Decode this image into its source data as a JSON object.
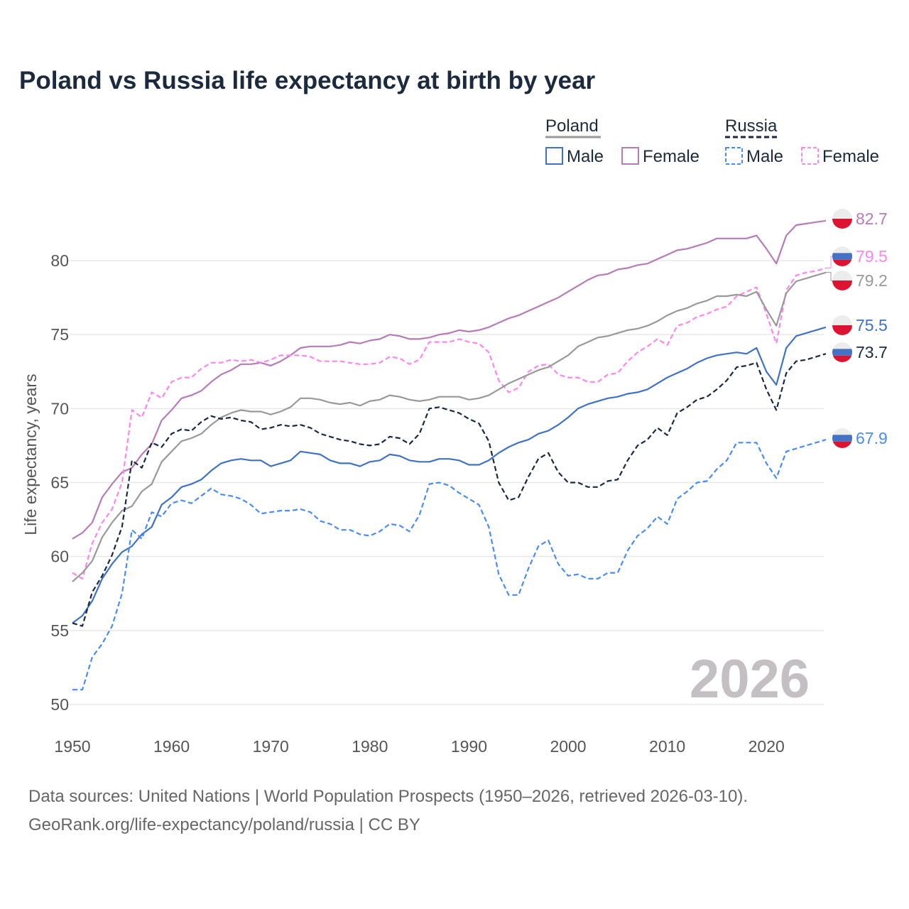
{
  "title": "Poland vs Russia life expectancy at birth by year",
  "footer": {
    "line1": "Data sources: United Nations | World Population Prospects (1950–2026, retrieved 2026-03-10).",
    "line2": "GeoRank.org/life-expectancy/poland/russia | CC BY"
  },
  "chart_data": {
    "type": "line",
    "title": "Poland vs Russia life expectancy at birth by year",
    "xlabel": "",
    "ylabel": "Life expectancy, years",
    "xlim": [
      1950,
      2026
    ],
    "ylim": [
      50,
      83
    ],
    "x_ticks": [
      "1950",
      "1960",
      "1970",
      "1980",
      "1990",
      "2000",
      "2010",
      "2020"
    ],
    "y_ticks": [
      "50",
      "55",
      "60",
      "65",
      "70",
      "75",
      "80"
    ],
    "grid": "horizontal",
    "watermark_year": "2026",
    "legend": {
      "placement": "top-right",
      "groups": [
        {
          "name": "Poland",
          "items": [
            "Male",
            "Female"
          ]
        },
        {
          "name": "Russia",
          "items": [
            "Male",
            "Female"
          ]
        }
      ]
    },
    "x_start": 1950,
    "series": [
      {
        "name": "Poland Female",
        "country": "Poland",
        "sex": "Female",
        "color": "#b67bb8",
        "dashed": false,
        "end_label": "82.7",
        "flag": "poland",
        "values": [
          61.2,
          61.6,
          62.3,
          64.0,
          64.9,
          65.7,
          66.0,
          66.9,
          67.6,
          69.2,
          69.9,
          70.7,
          70.9,
          71.2,
          71.8,
          72.3,
          72.6,
          73.0,
          73.0,
          73.1,
          72.9,
          73.2,
          73.6,
          74.1,
          74.2,
          74.2,
          74.2,
          74.3,
          74.5,
          74.4,
          74.6,
          74.7,
          75.0,
          74.9,
          74.7,
          74.7,
          74.8,
          75.0,
          75.1,
          75.3,
          75.2,
          75.3,
          75.5,
          75.8,
          76.1,
          76.3,
          76.6,
          76.9,
          77.2,
          77.5,
          77.9,
          78.3,
          78.7,
          79.0,
          79.1,
          79.4,
          79.5,
          79.7,
          79.8,
          80.1,
          80.4,
          80.7,
          80.8,
          81.0,
          81.2,
          81.5,
          81.5,
          81.5,
          81.5,
          81.7,
          80.8,
          79.8,
          81.7,
          82.4,
          82.5,
          82.6,
          82.7
        ]
      },
      {
        "name": "Russia Female",
        "country": "Russia",
        "sex": "Female",
        "color": "#ff85ef",
        "dashed": true,
        "end_label": "79.5",
        "flag": "russia",
        "values": [
          58.9,
          58.5,
          60.9,
          62.3,
          63.2,
          65.0,
          69.9,
          69.4,
          71.1,
          70.7,
          71.8,
          72.1,
          72.1,
          72.7,
          73.1,
          73.1,
          73.3,
          73.2,
          73.3,
          73.1,
          73.3,
          73.6,
          73.6,
          73.6,
          73.5,
          73.2,
          73.2,
          73.2,
          73.1,
          73.0,
          73.0,
          73.1,
          73.5,
          73.4,
          73.0,
          73.3,
          74.5,
          74.5,
          74.5,
          74.7,
          74.5,
          74.4,
          73.8,
          71.9,
          71.1,
          71.4,
          72.5,
          72.9,
          73.0,
          72.3,
          72.1,
          72.1,
          71.8,
          71.8,
          72.3,
          72.4,
          73.2,
          73.8,
          74.2,
          74.7,
          74.3,
          75.6,
          75.8,
          76.2,
          76.4,
          76.7,
          76.9,
          77.6,
          77.9,
          78.2,
          76.4,
          74.4,
          78.0,
          79.0,
          79.2,
          79.3,
          79.5
        ]
      },
      {
        "name": "Poland",
        "country": "Poland",
        "sex": "Total",
        "color": "#999999",
        "dashed": false,
        "end_label": "79.2",
        "flag": "poland",
        "values": [
          58.3,
          58.9,
          59.7,
          61.3,
          62.3,
          63.1,
          63.4,
          64.4,
          64.9,
          66.4,
          67.1,
          67.8,
          68.0,
          68.3,
          68.9,
          69.4,
          69.7,
          69.9,
          69.8,
          69.8,
          69.6,
          69.8,
          70.1,
          70.7,
          70.7,
          70.6,
          70.4,
          70.3,
          70.4,
          70.2,
          70.5,
          70.6,
          70.9,
          70.8,
          70.6,
          70.5,
          70.6,
          70.8,
          70.8,
          70.8,
          70.6,
          70.7,
          70.9,
          71.3,
          71.7,
          72.0,
          72.3,
          72.6,
          72.8,
          73.2,
          73.6,
          74.2,
          74.5,
          74.8,
          74.9,
          75.1,
          75.3,
          75.4,
          75.6,
          75.9,
          76.3,
          76.6,
          76.8,
          77.1,
          77.3,
          77.6,
          77.6,
          77.7,
          77.6,
          77.9,
          76.7,
          75.6,
          77.8,
          78.6,
          78.8,
          79.0,
          79.2
        ]
      },
      {
        "name": "Poland Male",
        "country": "Poland",
        "sex": "Male",
        "color": "#3f72c6",
        "dashed": false,
        "end_label": "75.5",
        "flag": "poland",
        "values": [
          55.5,
          56.0,
          57.0,
          58.5,
          59.5,
          60.3,
          60.7,
          61.5,
          62.0,
          63.5,
          64.0,
          64.7,
          64.9,
          65.2,
          65.8,
          66.3,
          66.5,
          66.6,
          66.5,
          66.5,
          66.1,
          66.3,
          66.5,
          67.1,
          67.0,
          66.9,
          66.5,
          66.3,
          66.3,
          66.1,
          66.4,
          66.5,
          66.9,
          66.8,
          66.5,
          66.4,
          66.4,
          66.6,
          66.6,
          66.5,
          66.2,
          66.2,
          66.5,
          67.0,
          67.4,
          67.7,
          67.9,
          68.3,
          68.5,
          68.9,
          69.4,
          70.0,
          70.3,
          70.5,
          70.7,
          70.8,
          71.0,
          71.1,
          71.3,
          71.7,
          72.1,
          72.4,
          72.7,
          73.1,
          73.4,
          73.6,
          73.7,
          73.8,
          73.7,
          74.1,
          72.5,
          71.6,
          74.1,
          74.9,
          75.1,
          75.3,
          75.5
        ]
      },
      {
        "name": "Russia",
        "country": "Russia",
        "sex": "Total",
        "color": "#1a2940",
        "dashed": true,
        "end_label": "73.7",
        "flag": "russia",
        "values": [
          55.5,
          55.3,
          57.6,
          58.7,
          60.1,
          62.0,
          66.5,
          66.0,
          67.7,
          67.4,
          68.3,
          68.6,
          68.5,
          69.1,
          69.5,
          69.3,
          69.4,
          69.2,
          69.1,
          68.6,
          68.7,
          68.9,
          68.8,
          68.9,
          68.7,
          68.3,
          68.1,
          67.9,
          67.8,
          67.6,
          67.5,
          67.6,
          68.1,
          68.0,
          67.6,
          68.3,
          70.0,
          70.1,
          69.9,
          69.7,
          69.3,
          69.0,
          67.8,
          65.0,
          63.8,
          64.0,
          65.4,
          66.6,
          67.0,
          65.7,
          65.0,
          65.0,
          64.7,
          64.7,
          65.1,
          65.2,
          66.5,
          67.5,
          67.9,
          68.7,
          68.2,
          69.7,
          70.1,
          70.6,
          70.8,
          71.3,
          71.9,
          72.8,
          72.9,
          73.1,
          71.3,
          69.9,
          72.4,
          73.2,
          73.3,
          73.5,
          73.7
        ]
      },
      {
        "name": "Russia Male",
        "country": "Russia",
        "sex": "Male",
        "color": "#4a8cf7",
        "dashed": true,
        "end_label": "67.9",
        "flag": "russia",
        "values": [
          51.0,
          51.0,
          53.2,
          54.1,
          55.3,
          57.5,
          61.8,
          61.2,
          63.0,
          62.7,
          63.6,
          63.8,
          63.6,
          64.1,
          64.6,
          64.2,
          64.1,
          63.9,
          63.5,
          62.9,
          63.0,
          63.1,
          63.1,
          63.2,
          63.0,
          62.4,
          62.2,
          61.8,
          61.8,
          61.5,
          61.4,
          61.7,
          62.2,
          62.1,
          61.7,
          62.8,
          64.9,
          65.0,
          64.8,
          64.3,
          63.9,
          63.5,
          62.0,
          58.8,
          57.4,
          57.4,
          59.2,
          60.7,
          61.1,
          59.5,
          58.7,
          58.8,
          58.5,
          58.5,
          58.9,
          58.9,
          60.4,
          61.4,
          61.9,
          62.7,
          62.2,
          63.9,
          64.4,
          65.0,
          65.1,
          65.9,
          66.5,
          67.7,
          67.7,
          67.7,
          66.3,
          65.3,
          67.1,
          67.3,
          67.5,
          67.7,
          67.9
        ]
      }
    ]
  }
}
